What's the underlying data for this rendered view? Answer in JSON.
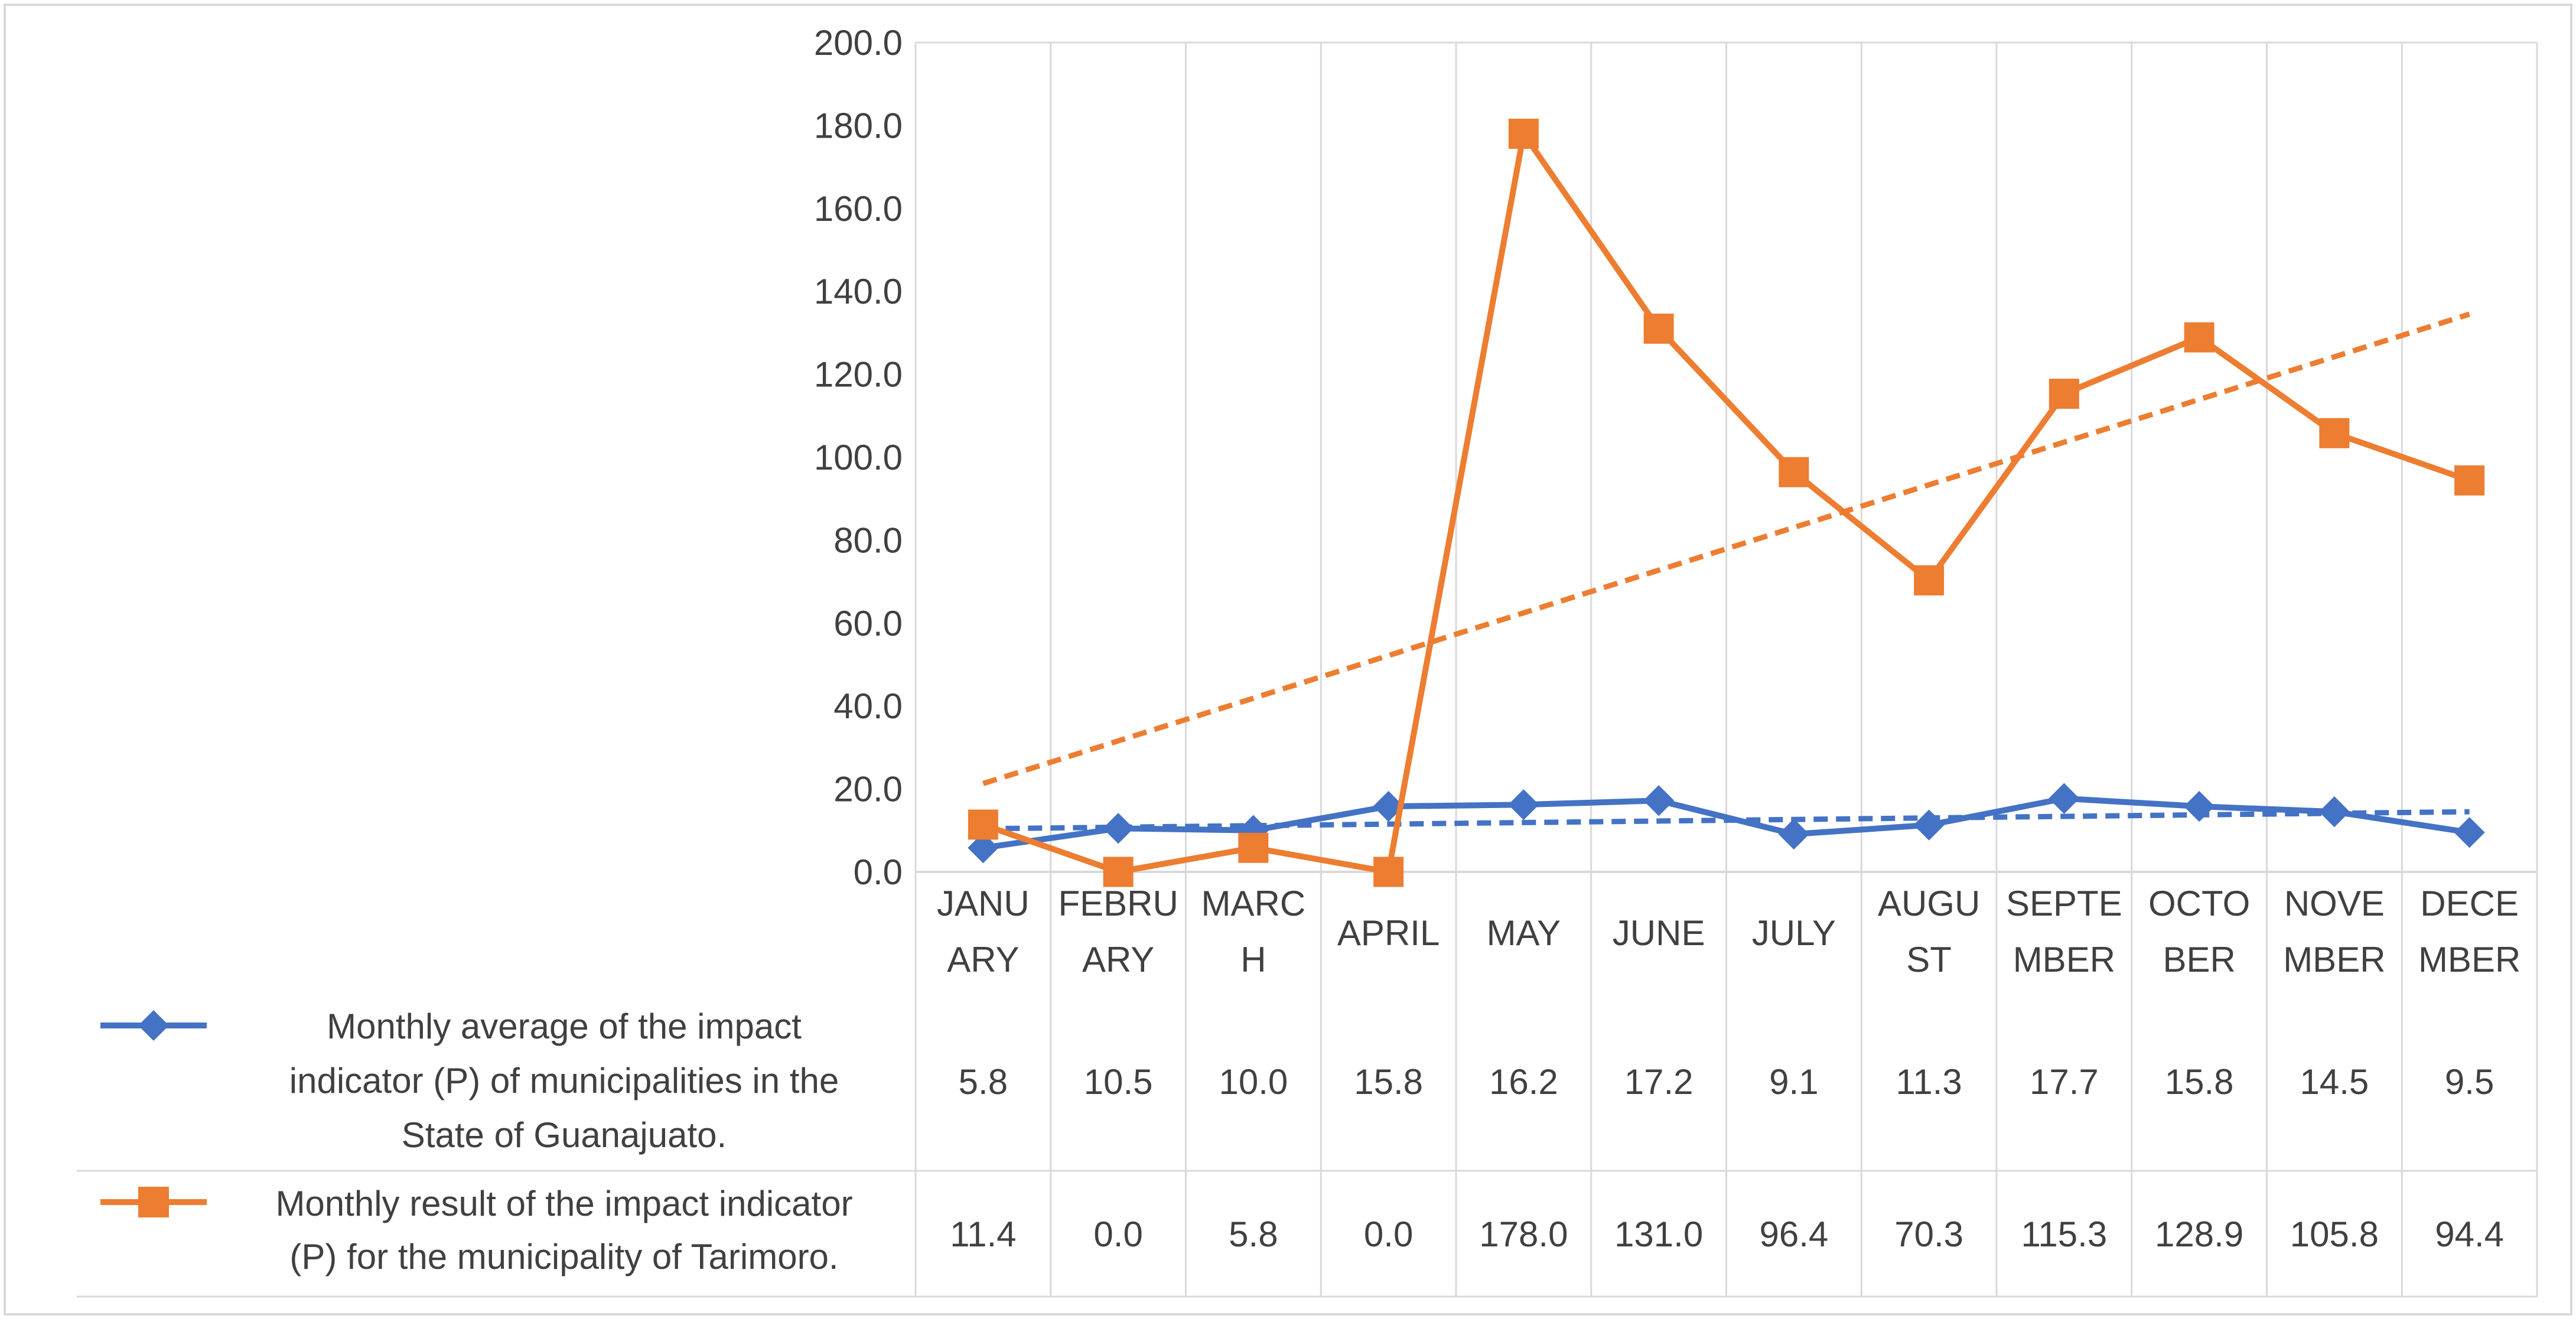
{
  "chart_data": {
    "type": "line",
    "title": "",
    "xlabel": "",
    "ylabel": "",
    "ylim": [
      0,
      200
    ],
    "y_ticks": [
      0,
      20,
      40,
      60,
      80,
      100,
      120,
      140,
      160,
      180,
      200
    ],
    "y_tick_labels": [
      "0.0",
      "20.0",
      "40.0",
      "60.0",
      "80.0",
      "100.0",
      "120.0",
      "140.0",
      "160.0",
      "180.0",
      "200.0"
    ],
    "category_labels": [
      [
        "JANU",
        "ARY"
      ],
      [
        "FEBRU",
        "ARY"
      ],
      [
        "MARC",
        "H"
      ],
      [
        "APRIL"
      ],
      [
        "MAY"
      ],
      [
        "JUNE"
      ],
      [
        "JULY"
      ],
      [
        "AUGU",
        "ST"
      ],
      [
        "SEPTE",
        "MBER"
      ],
      [
        "OCTO",
        "BER"
      ],
      [
        "NOVE",
        "MBER"
      ],
      [
        "DECE",
        "MBER"
      ]
    ],
    "categories": [
      "JANUARY",
      "FEBRUARY",
      "MARCH",
      "APRIL",
      "MAY",
      "JUNE",
      "JULY",
      "AUGUST",
      "SEPTEMBER",
      "OCTOBER",
      "NOVEMBER",
      "DECEMBER"
    ],
    "grid": true,
    "legend": "data table below the chart",
    "series": [
      {
        "name": "Monthly average of the impact indicator (P) of municipalities in the State of Guanajuato.",
        "name_lines": [
          "Monthly average of the impact",
          "indicator (P) of municipalities in the",
          "State of Guanajuato."
        ],
        "color": "#4472C4",
        "marker": "diamond",
        "values": [
          5.8,
          10.5,
          10.0,
          15.8,
          16.2,
          17.2,
          9.1,
          11.3,
          17.7,
          15.8,
          14.5,
          9.5
        ],
        "value_labels": [
          "5.8",
          "10.5",
          "10.0",
          "15.8",
          "16.2",
          "17.2",
          "9.1",
          "11.3",
          "17.7",
          "15.8",
          "14.5",
          "9.5"
        ],
        "trendline": {
          "type": "linear",
          "start": 10.4,
          "end": 14.5
        }
      },
      {
        "name": "Monthly result of the impact indicator (P) for the municipality of Tarimoro.",
        "name_lines": [
          "Monthly result of the impact indicator",
          "(P) for the municipality of Tarimoro."
        ],
        "color": "#ED7D31",
        "marker": "square",
        "values": [
          11.4,
          0.0,
          5.8,
          0.0,
          178.0,
          131.0,
          96.4,
          70.3,
          115.3,
          128.9,
          105.8,
          94.4
        ],
        "value_labels": [
          "11.4",
          "0.0",
          "5.8",
          "0.0",
          "178.0",
          "131.0",
          "96.4",
          "70.3",
          "115.3",
          "128.9",
          "105.8",
          "94.4"
        ],
        "trendline": {
          "type": "linear",
          "start": 21.3,
          "end": 134.5
        }
      }
    ]
  }
}
